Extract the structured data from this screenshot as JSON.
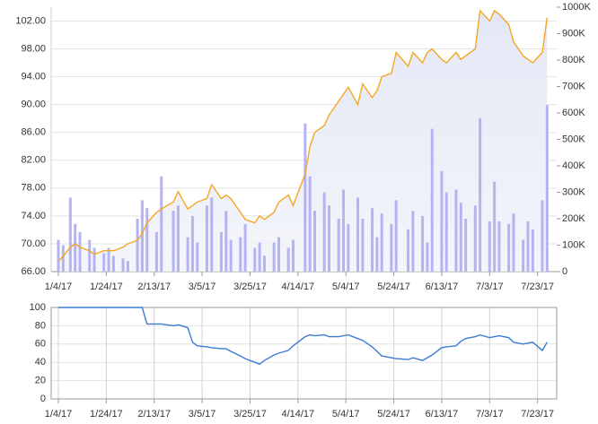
{
  "chart_data": [
    {
      "type": "line",
      "x": [
        "1/4/17",
        "1/6/17",
        "1/9/17",
        "1/11/17",
        "1/13/17",
        "1/17/17",
        "1/19/17",
        "1/23/17",
        "1/25/17",
        "1/27/17",
        "1/31/17",
        "2/2/17",
        "2/6/17",
        "2/8/17",
        "2/10/17",
        "2/14/17",
        "2/16/17",
        "2/21/17",
        "2/23/17",
        "2/27/17",
        "3/1/17",
        "3/3/17",
        "3/7/17",
        "3/9/17",
        "3/13/17",
        "3/15/17",
        "3/17/17",
        "3/21/17",
        "3/23/17",
        "3/27/17",
        "3/29/17",
        "3/31/17",
        "4/4/17",
        "4/6/17",
        "4/10/17",
        "4/12/17",
        "4/17/17",
        "4/19/17",
        "4/21/17",
        "4/25/17",
        "4/27/17",
        "5/1/17",
        "5/3/17",
        "5/5/17",
        "5/9/17",
        "5/11/17",
        "5/15/17",
        "5/17/17",
        "5/19/17",
        "5/23/17",
        "5/25/17",
        "5/30/17",
        "6/1/17",
        "6/5/17",
        "6/7/17",
        "6/9/17",
        "6/13/17",
        "6/15/17",
        "6/19/17",
        "6/21/17",
        "6/23/17",
        "6/27/17",
        "6/29/17",
        "7/3/17",
        "7/5/17",
        "7/7/17",
        "7/11/17",
        "7/13/17",
        "7/17/17",
        "7/19/17",
        "7/21/17",
        "7/25/17",
        "7/27/17"
      ],
      "series": [
        {
          "type": "line",
          "color": "#f5a623",
          "values": [
            67.5,
            68.2,
            69.5,
            70,
            69.5,
            69,
            68.5,
            69,
            69,
            69,
            69.5,
            70,
            70.5,
            71.5,
            73,
            74.5,
            75,
            76,
            77.5,
            75,
            75.5,
            76,
            76.5,
            78.5,
            76.5,
            77,
            76.5,
            74.5,
            73.5,
            73,
            74,
            73.5,
            74.5,
            76,
            77,
            75.5,
            80,
            84,
            86,
            87,
            88.5,
            90.5,
            91.5,
            92.5,
            90,
            93,
            91,
            92,
            94,
            94.5,
            97.5,
            95.5,
            97.5,
            96,
            97.5,
            98,
            96.5,
            96,
            97.5,
            96.5,
            97,
            98,
            103.5,
            102,
            103.5,
            103,
            101.5,
            99,
            97,
            96.5,
            96,
            97.5,
            102.5
          ]
        },
        {
          "type": "bar",
          "axis": "y2",
          "color": "#b4b4f0",
          "values": [
            120000,
            100000,
            280000,
            180000,
            150000,
            120000,
            90000,
            70000,
            90000,
            60000,
            50000,
            40000,
            200000,
            270000,
            240000,
            150000,
            360000,
            230000,
            250000,
            130000,
            210000,
            110000,
            250000,
            280000,
            150000,
            230000,
            120000,
            130000,
            180000,
            90000,
            110000,
            60000,
            110000,
            130000,
            90000,
            120000,
            560000,
            360000,
            230000,
            300000,
            250000,
            200000,
            310000,
            180000,
            280000,
            200000,
            240000,
            130000,
            220000,
            180000,
            270000,
            160000,
            230000,
            210000,
            110000,
            540000,
            380000,
            300000,
            310000,
            260000,
            200000,
            250000,
            580000,
            190000,
            340000,
            190000,
            180000,
            220000,
            120000,
            190000,
            160000,
            270000,
            630000
          ]
        }
      ],
      "xlim": [
        "1/1/17",
        "7/31/17"
      ],
      "xticks": [
        "1/4/17",
        "1/24/17",
        "2/13/17",
        "3/5/17",
        "3/25/17",
        "4/14/17",
        "5/4/17",
        "5/24/17",
        "6/13/17",
        "7/3/17",
        "7/23/17"
      ],
      "ylim": [
        66,
        104
      ],
      "yticks": [
        {
          "value": 66,
          "label": "66.00"
        },
        {
          "value": 70,
          "label": "70.00"
        },
        {
          "value": 74,
          "label": "74.00"
        },
        {
          "value": 78,
          "label": "78.00"
        },
        {
          "value": 82,
          "label": "82.00"
        },
        {
          "value": 86,
          "label": "86.00"
        },
        {
          "value": 90,
          "label": "90.00"
        },
        {
          "value": 94,
          "label": "94.00"
        },
        {
          "value": 98,
          "label": "98.00"
        },
        {
          "value": 102,
          "label": "102.00"
        }
      ],
      "y2lim": [
        0,
        1000000
      ],
      "y2ticks": [
        0,
        {
          "value": 100000,
          "label": "100K"
        },
        {
          "value": 200000,
          "label": "200K"
        },
        {
          "value": 300000,
          "label": "300K"
        },
        {
          "value": 400000,
          "label": "400K"
        },
        {
          "value": 500000,
          "label": "500K"
        },
        {
          "value": 600000,
          "label": "600K"
        },
        {
          "value": 700000,
          "label": "700K"
        },
        {
          "value": 800000,
          "label": "800K"
        },
        {
          "value": 900000,
          "label": "900K"
        },
        {
          "value": 1000000,
          "label": "1000K"
        }
      ],
      "grid": true
    },
    {
      "type": "line",
      "series": [
        {
          "color": "#3a7bd5",
          "values": [
            100,
            100,
            100,
            100,
            100,
            100,
            100,
            100,
            100,
            100,
            100,
            100,
            100,
            100,
            82,
            82,
            82,
            80,
            81,
            78,
            62,
            58,
            57,
            56,
            55,
            55,
            52,
            47,
            44,
            40,
            38,
            42,
            48,
            50,
            53,
            58,
            68,
            70,
            69,
            70,
            68,
            68,
            69,
            70,
            66,
            64,
            57,
            52,
            47,
            45,
            44,
            43,
            45,
            42,
            45,
            48,
            56,
            57,
            58,
            63,
            66,
            68,
            70,
            67,
            68,
            69,
            67,
            62,
            60,
            61,
            62,
            53,
            62
          ]
        }
      ],
      "ylim": [
        0,
        100
      ],
      "yticks": [
        0,
        20,
        40,
        60,
        80,
        100
      ],
      "grid": true
    }
  ]
}
